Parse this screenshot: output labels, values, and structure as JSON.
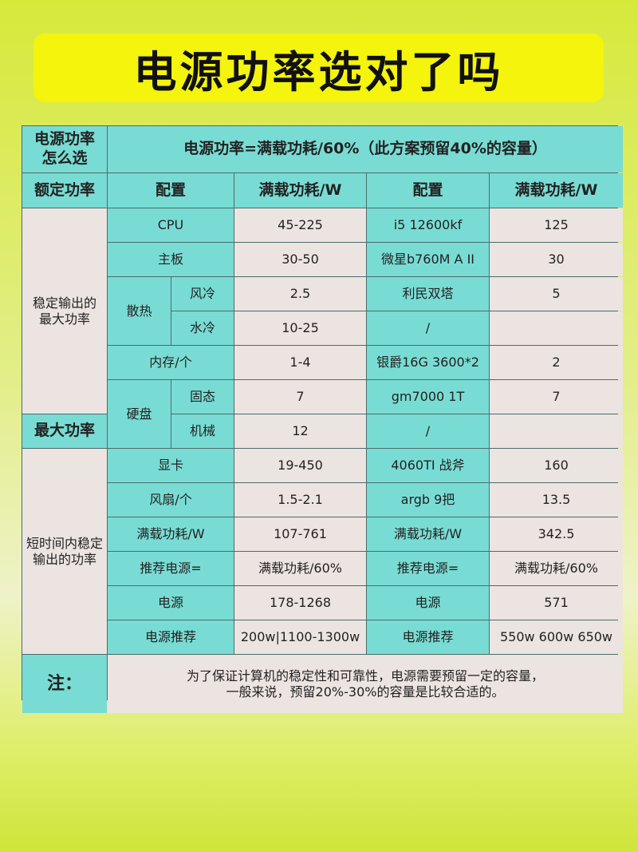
{
  "title": "电源功率选对了吗",
  "colors": {
    "teal": "#79dcd4",
    "pink": "#ece4e1",
    "title_bg": "#f4f40c",
    "background": "#d6e93a"
  },
  "table": {
    "corner": "电源功率怎么选",
    "formula": "电源功率=满载功耗/60%（此方案预留40%的容量）",
    "rated_label": "额定功率",
    "headers": [
      "配置",
      "满载功耗/W",
      "配置",
      "满载功耗/W"
    ],
    "group_stable": "稳定输出的最大功率",
    "group_max": "最大功率",
    "group_short": "短时间内稳定输出的功率",
    "cooling_label": "散热",
    "disk_label": "硬盘",
    "rows": [
      {
        "item": "CPU",
        "range": "45-225",
        "config": "i5 12600kf",
        "watt": "125"
      },
      {
        "item": "主板",
        "range": "30-50",
        "config": "微星b760M A II",
        "watt": "30"
      },
      {
        "item": "风冷",
        "range": "2.5",
        "config": "利民双塔",
        "watt": "5"
      },
      {
        "item": "水冷",
        "range": "10-25",
        "config": "/",
        "watt": ""
      },
      {
        "item": "内存/个",
        "range": "1-4",
        "config": "银爵16G 3600*2",
        "watt": "2"
      },
      {
        "item": "固态",
        "range": "7",
        "config": "gm7000 1T",
        "watt": "7"
      },
      {
        "item": "机械",
        "range": "12",
        "config": "/",
        "watt": ""
      },
      {
        "item": "显卡",
        "range": "19-450",
        "config": "4060TI 战斧",
        "watt": "160"
      },
      {
        "item": "风扇/个",
        "range": "1.5-2.1",
        "config": "argb 9把",
        "watt": "13.5"
      },
      {
        "item": "满载功耗/W",
        "range": "107-761",
        "config": "满载功耗/W",
        "watt": "342.5"
      },
      {
        "item": "推荐电源=",
        "range": "满载功耗/60%",
        "config": "推荐电源=",
        "watt": "满载功耗/60%"
      },
      {
        "item": "电源",
        "range": "178-1268",
        "config": "电源",
        "watt": "571"
      },
      {
        "item": "电源推荐",
        "range": "200w|1100-1300w",
        "config": "电源推荐",
        "watt": "550w 600w 650w"
      }
    ],
    "note_label": "注：",
    "note_line1": "为了保证计算机的稳定性和可靠性，电源需要预留一定的容量，",
    "note_line2": "一般来说，预留20%-30%的容量是比较合适的。"
  }
}
